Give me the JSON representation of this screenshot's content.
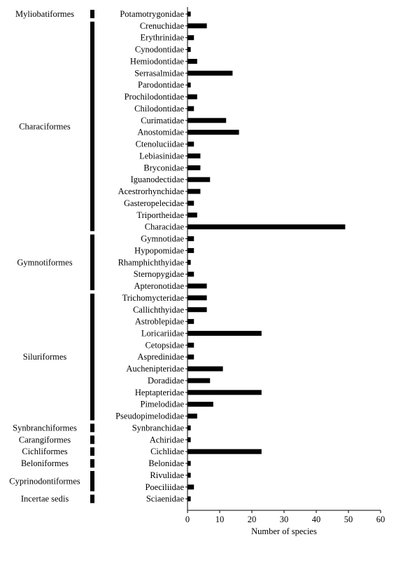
{
  "chart_data": {
    "type": "bar",
    "orientation": "horizontal",
    "xlabel": "Number of species",
    "xlim": [
      0,
      60
    ],
    "xticks": [
      "0",
      "10",
      "20",
      "30",
      "40",
      "50",
      "60"
    ],
    "grid": false,
    "legend": "none",
    "bar_color": "#000000",
    "families": [
      {
        "label": "Potamotrygonidae",
        "value": 1
      },
      {
        "label": "Crenuchidae",
        "value": 6
      },
      {
        "label": "Erythrinidae",
        "value": 2
      },
      {
        "label": "Cynodontidae",
        "value": 1
      },
      {
        "label": "Hemiodontidae",
        "value": 3
      },
      {
        "label": "Serrasalmidae",
        "value": 14
      },
      {
        "label": "Parodontidae",
        "value": 1
      },
      {
        "label": "Prochilodontidae",
        "value": 3
      },
      {
        "label": "Chilodontidae",
        "value": 2
      },
      {
        "label": "Curimatidae",
        "value": 12
      },
      {
        "label": "Anostomidae",
        "value": 16
      },
      {
        "label": "Ctenoluciidae",
        "value": 2
      },
      {
        "label": "Lebiasinidae",
        "value": 4
      },
      {
        "label": "Bryconidae",
        "value": 4
      },
      {
        "label": "Iguanodectidae",
        "value": 7
      },
      {
        "label": "Acestrorhynchidae",
        "value": 4
      },
      {
        "label": "Gasteropelecidae",
        "value": 2
      },
      {
        "label": "Triportheidae",
        "value": 3
      },
      {
        "label": "Characidae",
        "value": 49
      },
      {
        "label": "Gymnotidae",
        "value": 2
      },
      {
        "label": "Hypopomidae",
        "value": 2
      },
      {
        "label": "Rhamphichthyidae",
        "value": 1
      },
      {
        "label": "Sternopygidae",
        "value": 2
      },
      {
        "label": "Apteronotidae",
        "value": 6
      },
      {
        "label": "Trichomycteridae",
        "value": 6
      },
      {
        "label": "Callichthyidae",
        "value": 6
      },
      {
        "label": "Astroblepidae",
        "value": 2
      },
      {
        "label": "Loricariidae",
        "value": 23
      },
      {
        "label": "Cetopsidae",
        "value": 2
      },
      {
        "label": "Aspredinidae",
        "value": 2
      },
      {
        "label": "Auchenipteridae",
        "value": 11
      },
      {
        "label": "Doradidae",
        "value": 7
      },
      {
        "label": "Heptapteridae",
        "value": 23
      },
      {
        "label": "Pimelodidae",
        "value": 8
      },
      {
        "label": "Pseudopimelodidae",
        "value": 3
      },
      {
        "label": "Synbranchidae",
        "value": 1
      },
      {
        "label": "Achiridae",
        "value": 1
      },
      {
        "label": "Cichlidae",
        "value": 23
      },
      {
        "label": "Belonidae",
        "value": 1
      },
      {
        "label": "Rivulidae",
        "value": 1
      },
      {
        "label": "Poeciliidae",
        "value": 2
      },
      {
        "label": "Sciaenidae",
        "value": 1
      }
    ],
    "orders": [
      {
        "label": "Myliobatiformes",
        "start": 0,
        "end": 0
      },
      {
        "label": "Characiformes",
        "start": 1,
        "end": 18
      },
      {
        "label": "Gymnotiformes",
        "start": 19,
        "end": 23
      },
      {
        "label": "Siluriformes",
        "start": 24,
        "end": 34
      },
      {
        "label": "Synbranchiformes",
        "start": 35,
        "end": 35
      },
      {
        "label": "Carangiformes",
        "start": 36,
        "end": 36
      },
      {
        "label": "Cichliformes",
        "start": 37,
        "end": 37
      },
      {
        "label": "Beloniformes",
        "start": 38,
        "end": 38
      },
      {
        "label": "Cyprinodontiformes",
        "start": 39,
        "end": 40
      },
      {
        "label": "Incertae sedis",
        "start": 41,
        "end": 41
      }
    ]
  }
}
